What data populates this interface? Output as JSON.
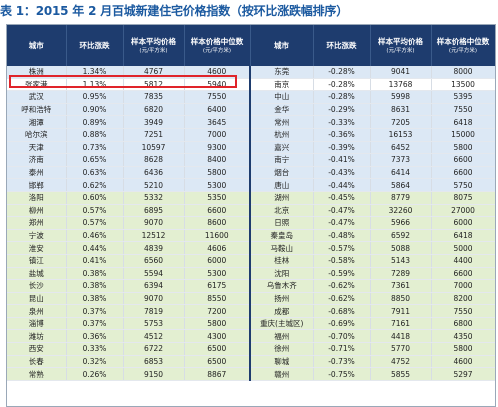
{
  "title": "表 1：2015 年 2 月百城新建住宅价格指数（按环比涨跌幅排序）",
  "headers": [
    {
      "main": "城市",
      "sub": ""
    },
    {
      "main": "环比涨跌",
      "sub": ""
    },
    {
      "main": "样本平均价格",
      "sub": "(元/平方米)"
    },
    {
      "main": "样本价格中位数",
      "sub": "(元/平方米)"
    },
    {
      "main": "城市",
      "sub": ""
    },
    {
      "main": "环比涨跌",
      "sub": ""
    },
    {
      "main": "样本平均价格",
      "sub": "(元/平方米)"
    },
    {
      "main": "样本价格中位数",
      "sub": "(元/平方米)"
    }
  ],
  "rows": [
    {
      "style": "blue",
      "cells": [
        "株洲",
        "1.34%",
        "4767",
        "4600",
        "东莞",
        "-0.28%",
        "9041",
        "8000"
      ]
    },
    {
      "style": "white",
      "cells": [
        "张家港",
        "1.13%",
        "5812",
        "5940",
        "南京",
        "-0.28%",
        "13768",
        "13500"
      ]
    },
    {
      "style": "blue",
      "cells": [
        "武汉",
        "0.95%",
        "7835",
        "7550",
        "中山",
        "-0.28%",
        "5998",
        "5395"
      ]
    },
    {
      "style": "blue",
      "cells": [
        "呼和浩特",
        "0.90%",
        "6820",
        "6400",
        "金华",
        "-0.29%",
        "8631",
        "7550"
      ]
    },
    {
      "style": "blue",
      "cells": [
        "湘潭",
        "0.89%",
        "3949",
        "3645",
        "常州",
        "-0.33%",
        "7205",
        "6418"
      ]
    },
    {
      "style": "blue",
      "cells": [
        "哈尔滨",
        "0.88%",
        "7251",
        "7000",
        "杭州",
        "-0.36%",
        "16153",
        "15000"
      ]
    },
    {
      "style": "blue",
      "cells": [
        "天津",
        "0.73%",
        "10597",
        "9300",
        "嘉兴",
        "-0.39%",
        "6452",
        "5800"
      ]
    },
    {
      "style": "blue",
      "cells": [
        "济南",
        "0.65%",
        "8628",
        "8400",
        "南宁",
        "-0.41%",
        "7373",
        "6600"
      ]
    },
    {
      "style": "blue",
      "cells": [
        "泰州",
        "0.63%",
        "6436",
        "5800",
        "烟台",
        "-0.43%",
        "6414",
        "6600"
      ]
    },
    {
      "style": "blue",
      "cells": [
        "邯郸",
        "0.62%",
        "5210",
        "5300",
        "唐山",
        "-0.44%",
        "5864",
        "5750"
      ]
    },
    {
      "style": "green",
      "cells": [
        "洛阳",
        "0.60%",
        "5332",
        "5350",
        "湖州",
        "-0.45%",
        "8779",
        "8075"
      ]
    },
    {
      "style": "green",
      "cells": [
        "柳州",
        "0.57%",
        "6895",
        "6600",
        "北京",
        "-0.47%",
        "32260",
        "27000"
      ]
    },
    {
      "style": "green",
      "cells": [
        "郑州",
        "0.57%",
        "9070",
        "8600",
        "日照",
        "-0.47%",
        "5966",
        "6000"
      ]
    },
    {
      "style": "green",
      "cells": [
        "宁波",
        "0.46%",
        "12512",
        "11600",
        "秦皇岛",
        "-0.48%",
        "6592",
        "6418"
      ]
    },
    {
      "style": "green",
      "cells": [
        "淮安",
        "0.44%",
        "4839",
        "4606",
        "马鞍山",
        "-0.57%",
        "5088",
        "5000"
      ]
    },
    {
      "style": "green",
      "cells": [
        "镇江",
        "0.41%",
        "6560",
        "6000",
        "桂林",
        "-0.58%",
        "5143",
        "4400"
      ]
    },
    {
      "style": "green",
      "cells": [
        "盐城",
        "0.38%",
        "5594",
        "5300",
        "沈阳",
        "-0.59%",
        "7289",
        "6600"
      ]
    },
    {
      "style": "green",
      "cells": [
        "长沙",
        "0.38%",
        "6394",
        "6175",
        "乌鲁木齐",
        "-0.62%",
        "7361",
        "7000"
      ]
    },
    {
      "style": "green",
      "cells": [
        "昆山",
        "0.38%",
        "9070",
        "8550",
        "扬州",
        "-0.62%",
        "8850",
        "8200"
      ]
    },
    {
      "style": "green",
      "cells": [
        "泉州",
        "0.37%",
        "7819",
        "7200",
        "成都",
        "-0.68%",
        "7911",
        "7550"
      ]
    },
    {
      "style": "green",
      "cells": [
        "淄博",
        "0.37%",
        "5753",
        "5800",
        "重庆(主城区)",
        "-0.69%",
        "7161",
        "6800"
      ]
    },
    {
      "style": "green",
      "cells": [
        "潍坊",
        "0.36%",
        "4512",
        "4300",
        "福州",
        "-0.70%",
        "4418",
        "4350"
      ]
    },
    {
      "style": "green",
      "cells": [
        "西安",
        "0.33%",
        "6722",
        "6500",
        "徐州",
        "-0.71%",
        "5770",
        "5800"
      ]
    },
    {
      "style": "green",
      "cells": [
        "长春",
        "0.32%",
        "6853",
        "6500",
        "聊城",
        "-0.73%",
        "4752",
        "4600"
      ]
    },
    {
      "style": "green",
      "cells": [
        "常熟",
        "0.26%",
        "9150",
        "8867",
        "赣州",
        "-0.75%",
        "5855",
        "5297"
      ]
    }
  ]
}
